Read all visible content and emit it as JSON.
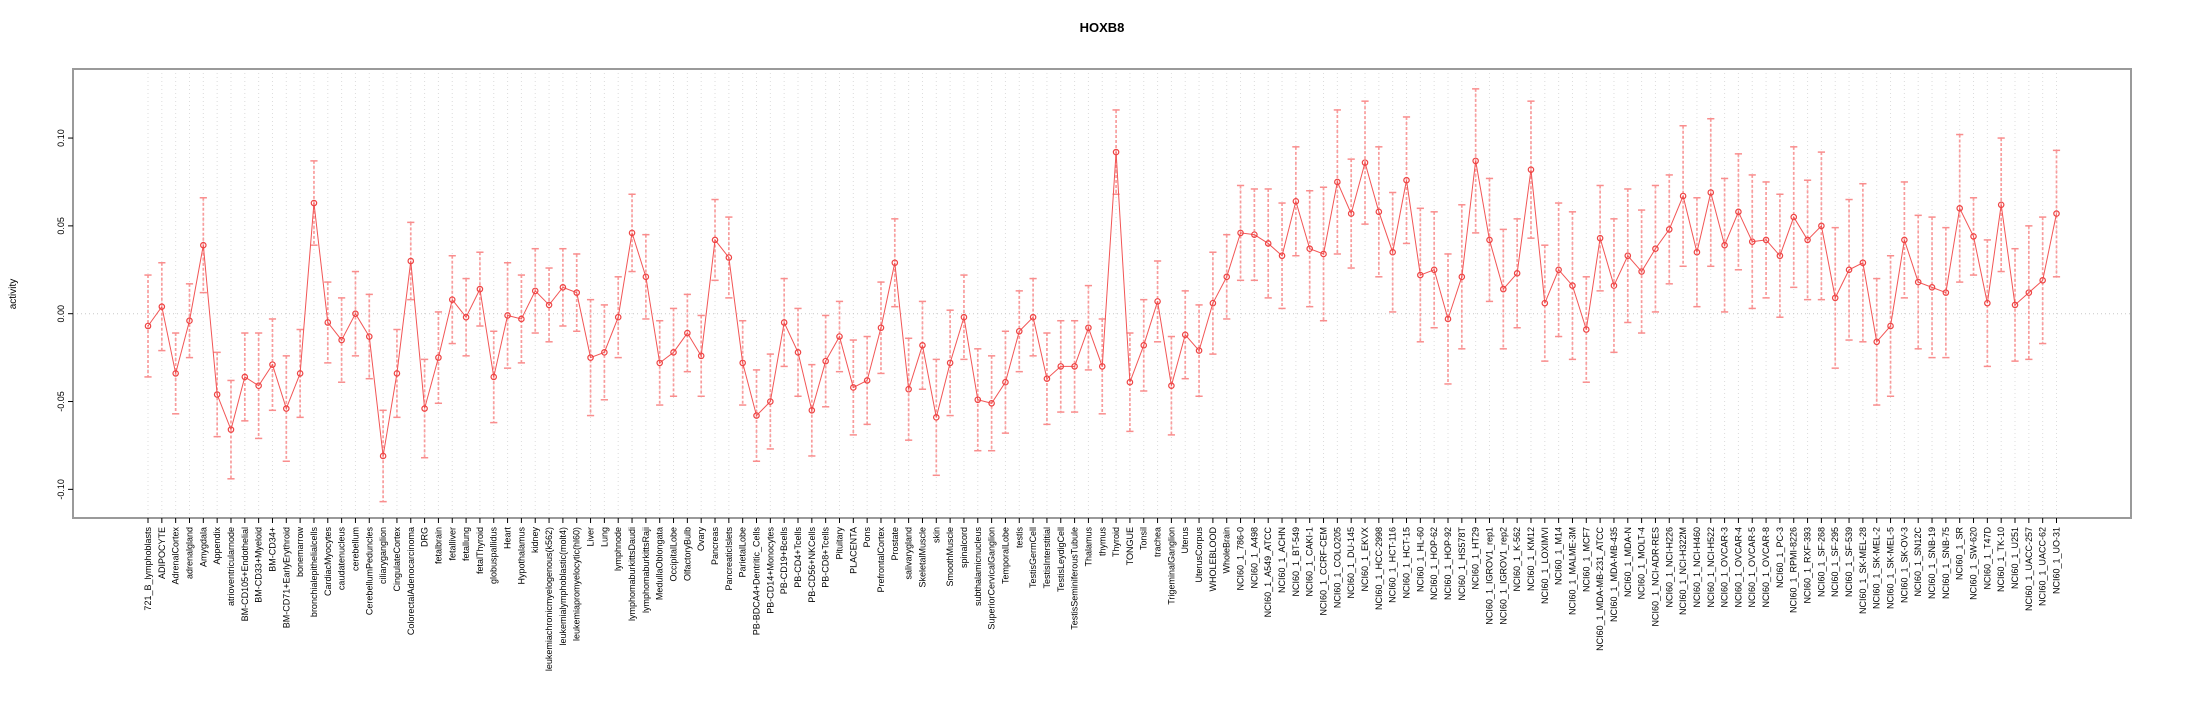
{
  "page": {
    "background": "#ffffff"
  },
  "chart_data": {
    "type": "line",
    "title": "HOXB8",
    "xlabel": "",
    "ylabel": "activity",
    "ylim": [
      -0.116,
      0.139
    ],
    "yticks": [
      0.1,
      0.05,
      0.0,
      -0.05,
      -0.1
    ],
    "ytick_labels": [
      "0.10",
      "0.05",
      "0.00",
      "-0.05",
      "-0.10"
    ],
    "grid": "vertical dotted line per category; horizontal dotted line at y=0",
    "legend": "none",
    "marker": "open-circle",
    "error_bars": true,
    "colors": {
      "line": "#f25555",
      "marker": "#ee4444",
      "error_bar": "#f98d8d",
      "grid": "#dcdcdc",
      "zero_line": "#c8c8c8",
      "box": "#9a9a9a",
      "tick": "#000000",
      "text": "#000000"
    },
    "categories": [
      "721_B_lymphoblasts",
      "ADIPOCYTE",
      "AdrenalCortex",
      "adrenalgland",
      "Amygdala",
      "Appendix",
      "atrioventricularnode",
      "BM-CD105+Endothelial",
      "BM-CD33+Myeloid",
      "BM-CD34+",
      "BM-CD71+EarlyErythroid",
      "bonemarrow",
      "bronchialepithelialcells",
      "CardiacMyocytes",
      "caudatenucleus",
      "cerebellum",
      "CerebellumPeduncles",
      "ciliaryganglion",
      "CingulateCortex",
      "ColorectalAdenocarcinoma",
      "DRG",
      "fetalbrain",
      "fetalliver",
      "fetallung",
      "fetalThyroid",
      "globuspallidus",
      "Heart",
      "Hypothalamus",
      "kidney",
      "leukemiachronicmyelogenous(k562)",
      "leukemialymphoblastic(molt4)",
      "leukemiapromyelocytic(hl60)",
      "Liver",
      "Lung",
      "lymphnode",
      "lymphomaburkittsDaudi",
      "lymphomaburkittsRaji",
      "MedullaOblongata",
      "OccipitalLobe",
      "OlfactoryBulb",
      "Ovary",
      "Pancreas",
      "PancreaticIslets",
      "ParietalLobe",
      "PB-BDCA4+Dentritic_Cells",
      "PB-CD14+Monocytes",
      "PB-CD19+Bcells",
      "PB-CD4+Tcells",
      "PB-CD56+NKCells",
      "PB-CD8+Tcells",
      "Pituitary",
      "PLACENTA",
      "Pons",
      "PrefrontalCortex",
      "Prostate",
      "salivarygland",
      "SkeletalMuscle",
      "skin",
      "SmoothMuscle",
      "spinalcord",
      "subthalamicnucleus",
      "SuperiorCervicalGanglion",
      "TemporalLobe",
      "testis",
      "TestisGermCell",
      "TestisInterstitial",
      "TestisLeydigCell",
      "TestisSeminiferousTubule",
      "Thalamus",
      "thymus",
      "Thyroid",
      "TONGUE",
      "Tonsil",
      "trachea",
      "TrigeminalGanglion",
      "Uterus",
      "UterusCorpus",
      "WHOLEBLOOD",
      "WholeBrain",
      "NCI60_1_786-0",
      "NCI60_1_A498",
      "NCI60_1_A549_ATCC",
      "NCI60_1_ACHN",
      "NCI60_1_BT-549",
      "NCI60_1_CAKI-1",
      "NCI60_1_CCRF-CEM",
      "NCI60_1_COLO205",
      "NCI60_1_DU-145",
      "NCI60_1_EKVX",
      "NCI60_1_HCC-2998",
      "NCI60_1_HCT-116",
      "NCI60_1_HCT-15",
      "NCI60_1_HL-60",
      "NCI60_1_HOP-62",
      "NCI60_1_HOP-92",
      "NCI60_1_HS578T",
      "NCI60_1_HT29",
      "NCI60_1_IGROV1_rep1",
      "NCI60_1_IGROV1_rep2",
      "NCI60_1_K-562",
      "NCI60_1_KM12",
      "NCI60_1_LOXIMVI",
      "NCI60_1_M14",
      "NCI60_1_MALME-3M",
      "NCI60_1_MCF7",
      "NCI60_1_MDA-MB-231_ATCC",
      "NCI60_1_MDA-MB-435",
      "NCI60_1_MDA-N",
      "NCI60_1_MOLT-4",
      "NCI60_1_NCI-ADR-RES",
      "NCI60_1_NCI-H226",
      "NCI60_1_NCI-H322M",
      "NCI60_1_NCI-H460",
      "NCI60_1_NCI-H522",
      "NCI60_1_OVCAR-3",
      "NCI60_1_OVCAR-4",
      "NCI60_1_OVCAR-5",
      "NCI60_1_OVCAR-8",
      "NCI60_1_PC-3",
      "NCI60_1_RPMI-8226",
      "NCI60_1_RXF-393",
      "NCI60_1_SF-268",
      "NCI60_1_SF-295",
      "NCI60_1_SF-539",
      "NCI60_1_SK-MEL-28",
      "NCI60_1_SK-MEL-2",
      "NCI60_1_SK-MEL-5",
      "NCI60_1_SK-OV-3",
      "NCI60_1_SN12C",
      "NCI60_1_SNB-19",
      "NCI60_1_SNB-75",
      "NCI60_1_SR",
      "NCI60_1_SW-620",
      "NCI60_1_T47D",
      "NCI60_1_TK-10",
      "NCI60_1_U251",
      "NCI60_1_UACC-257",
      "NCI60_1_UACC-62",
      "NCI60_1_UO-31"
    ],
    "values": [
      -0.007,
      0.004,
      -0.034,
      -0.004,
      0.039,
      -0.046,
      -0.066,
      -0.036,
      -0.041,
      -0.029,
      -0.054,
      -0.034,
      0.063,
      -0.005,
      -0.015,
      0.0,
      -0.013,
      -0.081,
      -0.034,
      0.03,
      -0.054,
      -0.025,
      0.008,
      -0.002,
      0.014,
      -0.036,
      -0.001,
      -0.003,
      0.013,
      0.005,
      0.015,
      0.012,
      -0.025,
      -0.022,
      -0.002,
      0.046,
      0.021,
      -0.028,
      -0.022,
      -0.011,
      -0.024,
      0.042,
      0.032,
      -0.028,
      -0.058,
      -0.05,
      -0.005,
      -0.022,
      -0.055,
      -0.027,
      -0.013,
      -0.042,
      -0.038,
      -0.008,
      0.029,
      -0.043,
      -0.018,
      -0.059,
      -0.028,
      -0.002,
      -0.049,
      -0.051,
      -0.039,
      -0.01,
      -0.002,
      -0.037,
      -0.03,
      -0.03,
      -0.008,
      -0.03,
      0.092,
      -0.039,
      -0.018,
      0.007,
      -0.041,
      -0.012,
      -0.021,
      0.006,
      0.021,
      0.046,
      0.045,
      0.04,
      0.033,
      0.064,
      0.037,
      0.034,
      0.075,
      0.057,
      0.086,
      0.058,
      0.035,
      0.076,
      0.022,
      0.025,
      -0.003,
      0.021,
      0.087,
      0.042,
      0.014,
      0.023,
      0.082,
      0.006,
      0.025,
      0.016,
      -0.009,
      0.043,
      0.016,
      0.033,
      0.024,
      0.037,
      0.048,
      0.067,
      0.035,
      0.069,
      0.039,
      0.058,
      0.041,
      0.042,
      0.033,
      0.055,
      0.042,
      0.05,
      0.009,
      0.025,
      0.029,
      -0.016,
      -0.007,
      0.042,
      0.018,
      0.015,
      0.012,
      0.06,
      0.044,
      0.006,
      0.062,
      0.005,
      0.012,
      0.019,
      0.057
    ],
    "errors": [
      0.029,
      0.025,
      0.023,
      0.021,
      0.027,
      0.024,
      0.028,
      0.025,
      0.03,
      0.026,
      0.03,
      0.025,
      0.024,
      0.023,
      0.024,
      0.024,
      0.024,
      0.026,
      0.025,
      0.022,
      0.028,
      0.026,
      0.025,
      0.022,
      0.021,
      0.026,
      0.03,
      0.025,
      0.024,
      0.021,
      0.022,
      0.022,
      0.033,
      0.027,
      0.023,
      0.022,
      0.024,
      0.024,
      0.025,
      0.022,
      0.023,
      0.023,
      0.023,
      0.024,
      0.026,
      0.027,
      0.025,
      0.025,
      0.026,
      0.026,
      0.02,
      0.027,
      0.025,
      0.026,
      0.025,
      0.029,
      0.025,
      0.033,
      0.03,
      0.024,
      0.029,
      0.027,
      0.029,
      0.023,
      0.022,
      0.026,
      0.026,
      0.026,
      0.024,
      0.027,
      0.024,
      0.028,
      0.026,
      0.023,
      0.028,
      0.025,
      0.026,
      0.029,
      0.024,
      0.027,
      0.026,
      0.031,
      0.03,
      0.031,
      0.033,
      0.038,
      0.041,
      0.031,
      0.035,
      0.037,
      0.034,
      0.036,
      0.038,
      0.033,
      0.037,
      0.041,
      0.041,
      0.035,
      0.034,
      0.031,
      0.039,
      0.033,
      0.038,
      0.042,
      0.03,
      0.03,
      0.038,
      0.038,
      0.035,
      0.036,
      0.031,
      0.04,
      0.031,
      0.042,
      0.038,
      0.033,
      0.038,
      0.033,
      0.035,
      0.04,
      0.034,
      0.042,
      0.04,
      0.04,
      0.045,
      0.036,
      0.04,
      0.033,
      0.038,
      0.04,
      0.037,
      0.042,
      0.022,
      0.036,
      0.038,
      0.032,
      0.038,
      0.036,
      0.036
    ]
  }
}
